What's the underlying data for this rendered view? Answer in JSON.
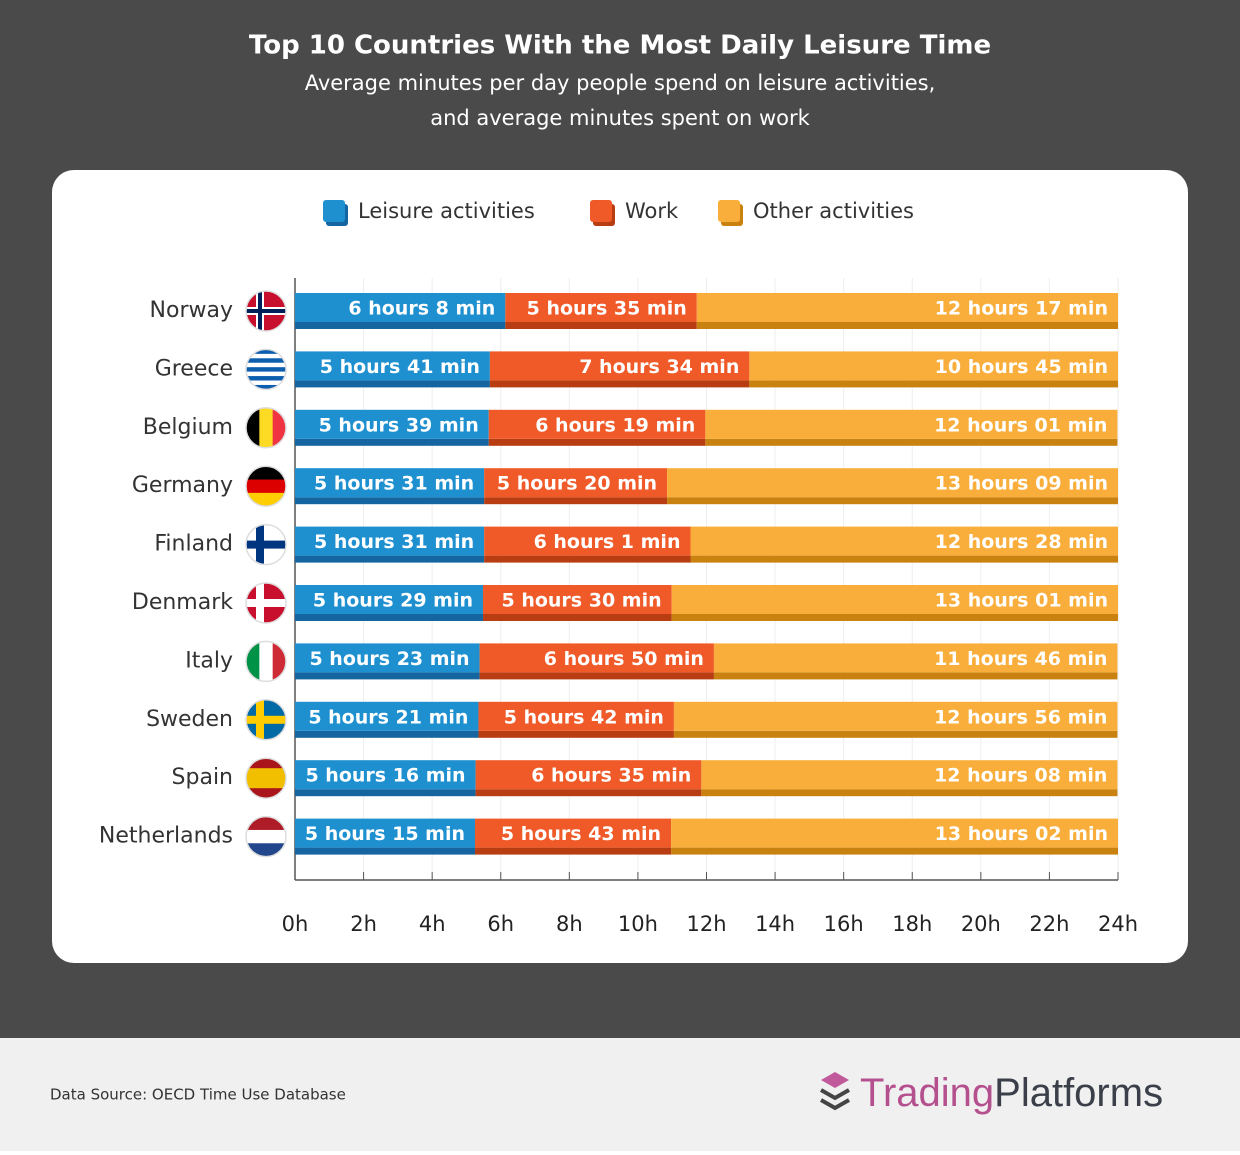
{
  "chart_data": {
    "type": "stacked-bar-horizontal",
    "title": "Top 10 Countries With the Most Daily Leisure Time",
    "subtitle": [
      "Average minutes per day people spend on leisure activities,",
      "and average minutes spent on work"
    ],
    "categories": [
      "Norway",
      "Greece",
      "Belgium",
      "Germany",
      "Finland",
      "Denmark",
      "Italy",
      "Sweden",
      "Spain",
      "Netherlands"
    ],
    "series": [
      {
        "name": "Leisure activities",
        "color": "#1e90d0",
        "values": [
          6.1333,
          5.6833,
          5.65,
          5.5167,
          5.5167,
          5.4833,
          5.3833,
          5.35,
          5.2667,
          5.25
        ],
        "value_labels": [
          "6 hours 8 min",
          "5 hours 41 min",
          "5 hours 39 min",
          "5 hours 31 min",
          "5 hours 31 min",
          "5 hours 29 min",
          "5 hours 23 min",
          "5 hours 21 min",
          "5 hours 16 min",
          "5 hours 15 min"
        ]
      },
      {
        "name": "Work",
        "color": "#f05a28",
        "values": [
          5.5833,
          7.5667,
          6.3167,
          5.3333,
          6.0167,
          5.5,
          6.8333,
          5.7,
          6.5833,
          5.7167
        ],
        "value_labels": [
          "5 hours 35 min",
          "7 hours 34 min",
          "6 hours 19 min",
          "5 hours 20 min",
          "6 hours 1 min",
          "5 hours 30 min",
          "6 hours 50 min",
          "5 hours 42 min",
          "6 hours 35 min",
          "5 hours 43 min"
        ]
      },
      {
        "name": "Other activities",
        "color": "#f9ae3b",
        "values": [
          12.2833,
          10.75,
          12.0167,
          13.15,
          12.4667,
          13.0167,
          11.7667,
          12.9333,
          12.1333,
          13.0333
        ],
        "value_labels": [
          "12 hours 17 min",
          "10 hours 45 min",
          "12 hours 01 min",
          "13 hours 09 min",
          "12 hours 28 min",
          "13 hours 01 min",
          "11 hours 46 min",
          "12 hours 56 min",
          "12 hours 08 min",
          "13 hours 02 min"
        ]
      }
    ],
    "xlim": [
      0,
      24
    ],
    "xticks": [
      {
        "value": 0,
        "label": "0h"
      },
      {
        "value": 2,
        "label": "2h"
      },
      {
        "value": 4,
        "label": "4h"
      },
      {
        "value": 6,
        "label": "6h"
      },
      {
        "value": 8,
        "label": "8h"
      },
      {
        "value": 10,
        "label": "10h"
      },
      {
        "value": 12,
        "label": "12h"
      },
      {
        "value": 14,
        "label": "14h"
      },
      {
        "value": 16,
        "label": "16h"
      },
      {
        "value": 18,
        "label": "18h"
      },
      {
        "value": 20,
        "label": "20h"
      },
      {
        "value": 22,
        "label": "22h"
      },
      {
        "value": 24,
        "label": "24h"
      }
    ],
    "grid": true,
    "source": "Data Source: OECD Time Use Database",
    "brand": [
      "Trading",
      "Platforms"
    ]
  }
}
